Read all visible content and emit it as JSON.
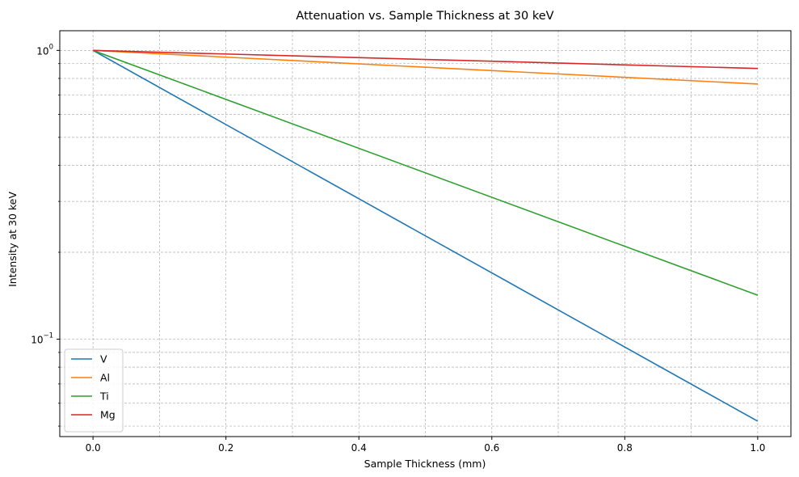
{
  "chart_data": {
    "type": "line",
    "title": "Attenuation vs. Sample Thickness at 30 keV",
    "xlabel": "Sample Thickness (mm)",
    "ylabel": "Intensity at 30 keV",
    "xlim": [
      -0.05,
      1.05
    ],
    "ylim": [
      0.046,
      1.17
    ],
    "yscale": "log",
    "grid": true,
    "legend_position": "lower-left",
    "x_ticks": [
      0.0,
      0.2,
      0.4,
      0.6,
      0.8,
      1.0
    ],
    "x_tick_labels": [
      "0.0",
      "0.2",
      "0.4",
      "0.6",
      "0.8",
      "1.0"
    ],
    "y_major_ticks": [
      {
        "value": 1.0,
        "base": "10",
        "exp": "0"
      },
      {
        "value": 0.1,
        "base": "10",
        "exp": "−1"
      }
    ],
    "y_minor_ticks": [
      0.05,
      0.06,
      0.07,
      0.08,
      0.09,
      0.2,
      0.3,
      0.4,
      0.5,
      0.6,
      0.7,
      0.8,
      0.9
    ],
    "x_minor_grid": [
      0.1,
      0.3,
      0.5,
      0.7,
      0.9
    ],
    "series": [
      {
        "name": "V",
        "color": "#1f77b4",
        "x": [
          0.0,
          1.0
        ],
        "y": [
          1.0,
          0.052
        ]
      },
      {
        "name": "Al",
        "color": "#ff7f0e",
        "x": [
          0.0,
          1.0
        ],
        "y": [
          1.0,
          0.765
        ]
      },
      {
        "name": "Ti",
        "color": "#2ca02c",
        "x": [
          0.0,
          1.0
        ],
        "y": [
          1.0,
          0.142
        ]
      },
      {
        "name": "Mg",
        "color": "#d62728",
        "x": [
          0.0,
          1.0
        ],
        "y": [
          1.0,
          0.866
        ]
      }
    ]
  }
}
